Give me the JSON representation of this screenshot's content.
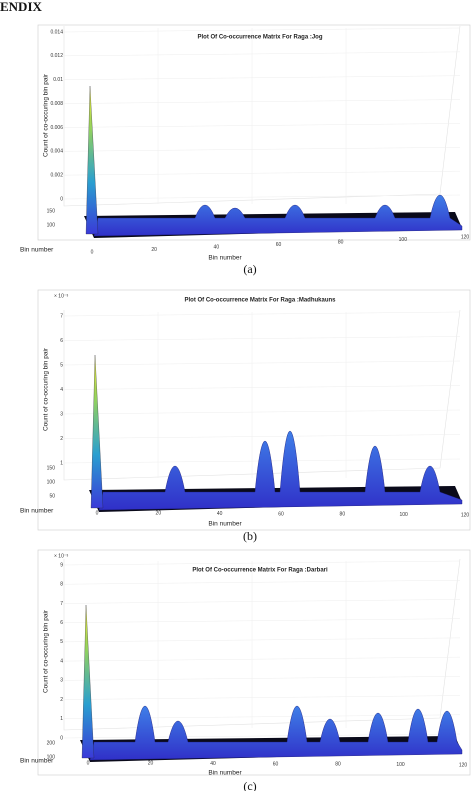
{
  "header": {
    "title": "ENDIX"
  },
  "figures": [
    {
      "title": "Plot Of Co-occurrence Matrix For Raga :Jog",
      "y_label": "Count of co-occuring bin pair",
      "x_label": "Bin number",
      "depth_label": "Bin number",
      "y_ticks": [
        "0.014",
        "0.012",
        "0.01",
        "0.008",
        "0.006",
        "0.004",
        "0.002",
        "0"
      ],
      "depth_ticks": [
        "150",
        "100"
      ],
      "x_ticks": [
        "0",
        "20",
        "40",
        "60",
        "80",
        "100",
        "120"
      ],
      "caption": "(a)"
    },
    {
      "title": "Plot Of Co-occurrence Matrix For Raga :Madhukauns",
      "exponent": "× 10⁻³",
      "y_label": "Count of co-occuring bin pair",
      "x_label": "Bin number",
      "depth_label": "Bin number",
      "y_ticks": [
        "7",
        "6",
        "5",
        "4",
        "3",
        "2",
        "1"
      ],
      "depth_ticks": [
        "150",
        "100",
        "50"
      ],
      "x_ticks": [
        "0",
        "20",
        "40",
        "60",
        "80",
        "100",
        "120"
      ],
      "caption": "(b)"
    },
    {
      "title": "Plot Of Co-occurrence Matrix For Raga :Darbari",
      "exponent": "× 10⁻³",
      "y_label": "Count of co-occuring bin pair",
      "x_label": "Bin number",
      "depth_label": "Bin number",
      "y_ticks": [
        "9",
        "8",
        "7",
        "6",
        "5",
        "4",
        "3",
        "2",
        "1",
        "0"
      ],
      "depth_ticks": [
        "200",
        "100"
      ],
      "x_ticks": [
        "0",
        "20",
        "40",
        "60",
        "80",
        "100",
        "120"
      ],
      "caption": "(c)"
    }
  ]
}
